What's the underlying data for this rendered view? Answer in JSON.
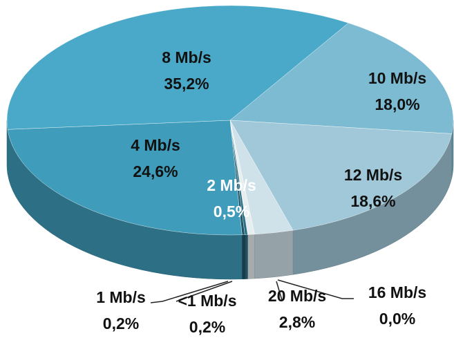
{
  "chart_data": {
    "type": "pie",
    "categories": [
      "10 Mb/s",
      "12 Mb/s",
      "20 Mb/s",
      "16 Mb/s",
      "2 Mb/s",
      "<1 Mb/s",
      "1 Mb/s",
      "4 Mb/s",
      "8 Mb/s"
    ],
    "values": [
      18.0,
      18.6,
      2.8,
      0.0,
      0.5,
      0.2,
      0.2,
      24.6,
      35.2
    ],
    "value_labels": [
      "18,0%",
      "18,6%",
      "2,8%",
      "0,0%",
      "0,5%",
      "0,2%",
      "0,2%",
      "24,6%",
      "35,2%"
    ],
    "colors": [
      "#7dbbd2",
      "#a0c8d8",
      "#cfe1e9",
      "#9c9c9c",
      "#e6eef0",
      "#2b6f86",
      "#1f5566",
      "#3f9cba",
      "#4aa9c8"
    ]
  }
}
